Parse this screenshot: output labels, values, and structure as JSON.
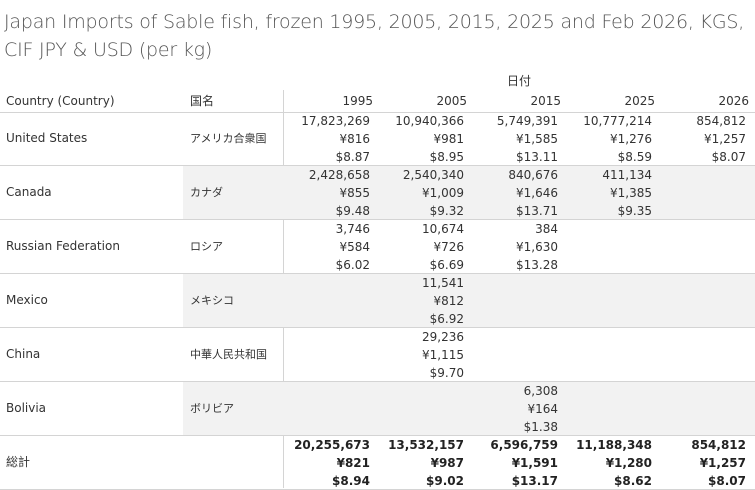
{
  "title": "Japan Imports of Sable fish, frozen 1995, 2005, 2015, 2025 and Feb 2026, KGS, CIF JPY & USD (per kg)",
  "header": {
    "group_label": "日付",
    "country_label": "Country (Country)",
    "jp_label": "国名",
    "years": [
      "1995",
      "2005",
      "2015",
      "2025",
      "2026"
    ]
  },
  "rows": [
    {
      "country": "United States",
      "jp": "アメリカ合衆国",
      "shade": false,
      "cells": [
        {
          "kg": "17,823,269",
          "jpy": "¥816",
          "usd": "$8.87"
        },
        {
          "kg": "10,940,366",
          "jpy": "¥981",
          "usd": "$8.95"
        },
        {
          "kg": "5,749,391",
          "jpy": "¥1,585",
          "usd": "$13.11"
        },
        {
          "kg": "10,777,214",
          "jpy": "¥1,276",
          "usd": "$8.59"
        },
        {
          "kg": "854,812",
          "jpy": "¥1,257",
          "usd": "$8.07"
        }
      ]
    },
    {
      "country": "Canada",
      "jp": "カナダ",
      "shade": true,
      "cells": [
        {
          "kg": "2,428,658",
          "jpy": "¥855",
          "usd": "$9.48"
        },
        {
          "kg": "2,540,340",
          "jpy": "¥1,009",
          "usd": "$9.32"
        },
        {
          "kg": "840,676",
          "jpy": "¥1,646",
          "usd": "$13.71"
        },
        {
          "kg": "411,134",
          "jpy": "¥1,385",
          "usd": "$9.35"
        },
        {
          "kg": "",
          "jpy": "",
          "usd": ""
        }
      ]
    },
    {
      "country": "Russian Federation",
      "jp": "ロシア",
      "shade": false,
      "cells": [
        {
          "kg": "3,746",
          "jpy": "¥584",
          "usd": "$6.02"
        },
        {
          "kg": "10,674",
          "jpy": "¥726",
          "usd": "$6.69"
        },
        {
          "kg": "384",
          "jpy": "¥1,630",
          "usd": "$13.28"
        },
        {
          "kg": "",
          "jpy": "",
          "usd": ""
        },
        {
          "kg": "",
          "jpy": "",
          "usd": ""
        }
      ]
    },
    {
      "country": "Mexico",
      "jp": "メキシコ",
      "shade": true,
      "cells": [
        {
          "kg": "",
          "jpy": "",
          "usd": ""
        },
        {
          "kg": "11,541",
          "jpy": "¥812",
          "usd": "$6.92"
        },
        {
          "kg": "",
          "jpy": "",
          "usd": ""
        },
        {
          "kg": "",
          "jpy": "",
          "usd": ""
        },
        {
          "kg": "",
          "jpy": "",
          "usd": ""
        }
      ]
    },
    {
      "country": "China",
      "jp": "中華人民共和国",
      "shade": false,
      "cells": [
        {
          "kg": "",
          "jpy": "",
          "usd": ""
        },
        {
          "kg": "29,236",
          "jpy": "¥1,115",
          "usd": "$9.70"
        },
        {
          "kg": "",
          "jpy": "",
          "usd": ""
        },
        {
          "kg": "",
          "jpy": "",
          "usd": ""
        },
        {
          "kg": "",
          "jpy": "",
          "usd": ""
        }
      ]
    },
    {
      "country": "Bolivia",
      "jp": "ボリビア",
      "shade": true,
      "cells": [
        {
          "kg": "",
          "jpy": "",
          "usd": ""
        },
        {
          "kg": "",
          "jpy": "",
          "usd": ""
        },
        {
          "kg": "6,308",
          "jpy": "¥164",
          "usd": "$1.38"
        },
        {
          "kg": "",
          "jpy": "",
          "usd": ""
        },
        {
          "kg": "",
          "jpy": "",
          "usd": ""
        }
      ]
    },
    {
      "country": "総計",
      "jp": "",
      "shade": false,
      "total": true,
      "cells": [
        {
          "kg": "20,255,673",
          "jpy": "¥821",
          "usd": "$8.94"
        },
        {
          "kg": "13,532,157",
          "jpy": "¥987",
          "usd": "$9.02"
        },
        {
          "kg": "6,596,759",
          "jpy": "¥1,591",
          "usd": "$13.17"
        },
        {
          "kg": "11,188,348",
          "jpy": "¥1,280",
          "usd": "$8.62"
        },
        {
          "kg": "854,812",
          "jpy": "¥1,257",
          "usd": "$8.07"
        }
      ]
    }
  ],
  "chart_data": {
    "type": "table",
    "title": "Japan Imports of Sable fish, frozen 1995, 2005, 2015, 2025 and Feb 2026, KGS, CIF JPY & USD (per kg)",
    "columns": [
      "1995",
      "2005",
      "2015",
      "2025",
      "2026"
    ],
    "series": [
      {
        "name": "United States",
        "kgs": [
          17823269,
          10940366,
          5749391,
          10777214,
          854812
        ],
        "jpy_per_kg": [
          816,
          981,
          1585,
          1276,
          1257
        ],
        "usd_per_kg": [
          8.87,
          8.95,
          13.11,
          8.59,
          8.07
        ]
      },
      {
        "name": "Canada",
        "kgs": [
          2428658,
          2540340,
          840676,
          411134,
          null
        ],
        "jpy_per_kg": [
          855,
          1009,
          1646,
          1385,
          null
        ],
        "usd_per_kg": [
          9.48,
          9.32,
          13.71,
          9.35,
          null
        ]
      },
      {
        "name": "Russian Federation",
        "kgs": [
          3746,
          10674,
          384,
          null,
          null
        ],
        "jpy_per_kg": [
          584,
          726,
          1630,
          null,
          null
        ],
        "usd_per_kg": [
          6.02,
          6.69,
          13.28,
          null,
          null
        ]
      },
      {
        "name": "Mexico",
        "kgs": [
          null,
          11541,
          null,
          null,
          null
        ],
        "jpy_per_kg": [
          null,
          812,
          null,
          null,
          null
        ],
        "usd_per_kg": [
          null,
          6.92,
          null,
          null,
          null
        ]
      },
      {
        "name": "China",
        "kgs": [
          null,
          29236,
          null,
          null,
          null
        ],
        "jpy_per_kg": [
          null,
          1115,
          null,
          null,
          null
        ],
        "usd_per_kg": [
          null,
          9.7,
          null,
          null,
          null
        ]
      },
      {
        "name": "Bolivia",
        "kgs": [
          null,
          null,
          6308,
          null,
          null
        ],
        "jpy_per_kg": [
          null,
          null,
          164,
          null,
          null
        ],
        "usd_per_kg": [
          null,
          null,
          1.38,
          null,
          null
        ]
      },
      {
        "name": "総計",
        "kgs": [
          20255673,
          13532157,
          6596759,
          11188348,
          854812
        ],
        "jpy_per_kg": [
          821,
          987,
          1591,
          1280,
          1257
        ],
        "usd_per_kg": [
          8.94,
          9.02,
          13.17,
          8.62,
          8.07
        ]
      }
    ]
  }
}
